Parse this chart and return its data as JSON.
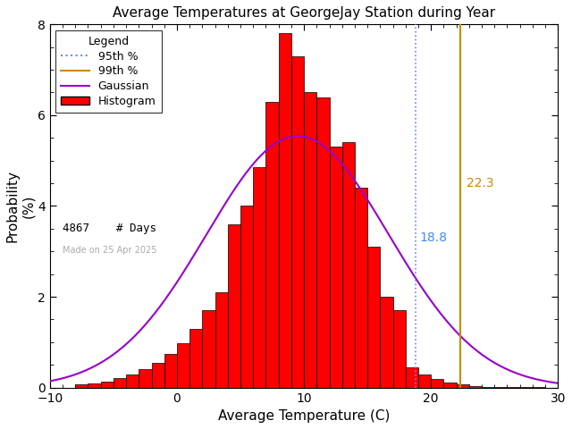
{
  "title": "Average Temperatures at GeorgeJay Station during Year",
  "xlabel": "Average Temperature (C)",
  "ylabel": "Probability\n(%)",
  "xlim": [
    -10,
    30
  ],
  "ylim": [
    0,
    8
  ],
  "xticks": [
    -10,
    0,
    10,
    20,
    30
  ],
  "yticks": [
    0,
    2,
    4,
    6,
    8
  ],
  "mean": 9.5,
  "std": 7.2,
  "n_days": 4867,
  "percentile_95": 18.8,
  "percentile_99": 22.3,
  "bin_edges": [
    -8,
    -7,
    -6,
    -5,
    -4,
    -3,
    -2,
    -1,
    0,
    1,
    2,
    3,
    4,
    5,
    6,
    7,
    8,
    9,
    10,
    11,
    12,
    13,
    14,
    15,
    16,
    17,
    18,
    19,
    20,
    21,
    22,
    23,
    24,
    25,
    26,
    27,
    28
  ],
  "bin_probs": [
    0.08,
    0.1,
    0.14,
    0.2,
    0.28,
    0.4,
    0.55,
    0.75,
    0.98,
    1.3,
    1.7,
    2.1,
    3.6,
    4.0,
    4.85,
    6.3,
    7.8,
    7.3,
    6.5,
    6.4,
    5.3,
    5.4,
    4.4,
    3.1,
    2.0,
    1.7,
    0.45,
    0.28,
    0.18,
    0.12,
    0.08,
    0.04,
    0.02,
    0.02,
    0.01,
    0.01,
    0.005
  ],
  "hist_color": "#ff0000",
  "hist_edgecolor": "#000000",
  "gaussian_color": "#9900cc",
  "p95_color": "#6688ff",
  "p99_color": "#cc8800",
  "label_95_color": "#4488ff",
  "label_99_color": "#cc8800",
  "date_text": "Made on 25 Apr 2025",
  "date_color": "#aaaaaa",
  "background_color": "#ffffff",
  "legend_title": "Legend",
  "legend_95": "95th %",
  "legend_99": "99th %",
  "legend_gauss": "Gaussian",
  "legend_hist": "Histogram",
  "legend_days": "4867    # Days"
}
